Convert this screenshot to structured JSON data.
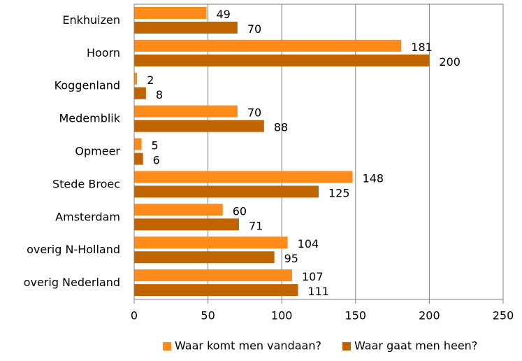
{
  "chart_data": {
    "type": "bar",
    "orientation": "horizontal",
    "categories": [
      "Enkhuizen",
      "Hoorn",
      "Koggenland",
      "Medemblik",
      "Opmeer",
      "Stede Broec",
      "Amsterdam",
      "overig N-Holland",
      "overig Nederland"
    ],
    "series": [
      {
        "name": "Waar komt men vandaan?",
        "color": "#ff8c1a",
        "values": [
          49,
          181,
          2,
          70,
          5,
          148,
          60,
          104,
          107
        ]
      },
      {
        "name": "Waar gaat men heen?",
        "color": "#c06400",
        "values": [
          70,
          200,
          8,
          88,
          6,
          125,
          71,
          95,
          111
        ]
      }
    ],
    "xlim": [
      0,
      250
    ],
    "xticks": [
      0,
      50,
      100,
      150,
      200,
      250
    ],
    "grid": true,
    "legend": "bottom"
  }
}
